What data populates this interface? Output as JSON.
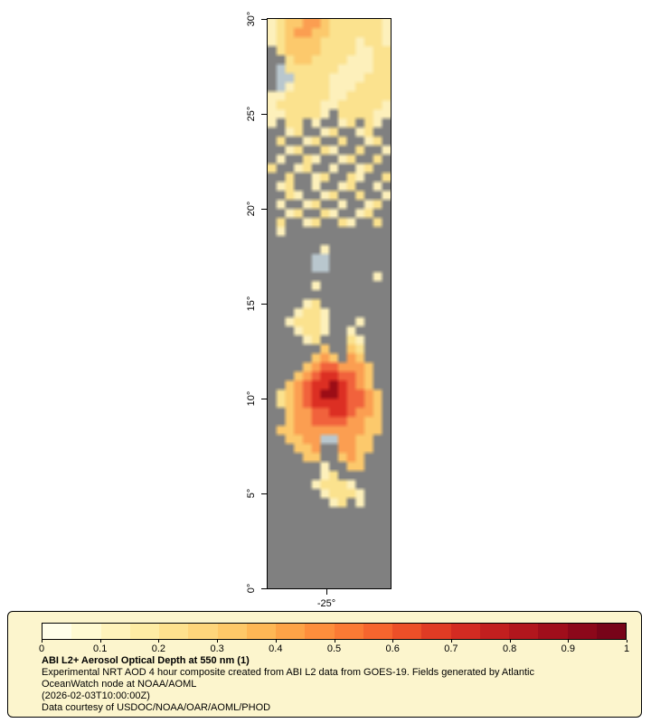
{
  "map": {
    "lat_tick_labels": [
      "30°",
      "25°",
      "20°",
      "15°",
      "10°",
      "5°",
      "0°"
    ],
    "lon_tick_labels": [
      "-25°"
    ],
    "no_data_color": "#808080",
    "palette": {
      ".": "#808080",
      "g": "#b9c7ce",
      "a": "#fdf0bb",
      "b": "#fbe28e",
      "c": "#fcc96c",
      "d": "#fb9e51",
      "e": "#f1623c",
      "f": "#dc2f23",
      "h": "#9c0d16"
    },
    "grid": [
      "abccddcbbbbbba",
      "abcddccbbbbbba",
      "abccccbbbbabba",
      ".bccccbbbbaabb",
      "..bccbbbbaaabb",
      ".gbbbbbbaaaabb",
      ".ggbbbbaaaabbb",
      ".gabbbbaaabbbb",
      "aabbbbbaabbbbb",
      "abbbbbaabbbbba",
      "aabbbba.bbbbaa",
      "a.bb.a..ab.ba.",
      "..ab..ab..ab..",
      ".b..ab..b..ab.",
      "..ab..ba..b..a",
      ".a..ba..ab..b.",
      "b..ab..a..ab..",
      "..b..ab..ba..b",
      ".ab..a..ab..a.",
      "..ba..ab..b..a",
      ".a..ab..a..ab.",
      "..ab..ba..ab..",
      ".b..ab..ba..b.",
      ".a............",
      "..............",
      "......a.......",
      ".....gg.......",
      ".....gg.......",
      "............a.",
      ".....a........",
      "..............",
      "....ab........",
      "...abba.......",
      "..abbba...a...",
      "...abba..a....",
      "....ab...ba...",
      "......c..cb...",
      ".....cdc.dc...",
      "....cdeedddc..",
      "...cdeffeedc..",
      "..cdeffhfedc..",
      ".bcdefhhfeedc.",
      ".bcdeffffeedc.",
      "..cddeeffeddc.",
      "..cddeeeeddcc.",
      ".ccddddddddcc.",
      "..ccddggddcc..",
      "...ccd..ddcc..",
      "....cc..cdc...",
      "......a..cc...",
      "......ab......",
      ".....abbba....",
      "......abbba...",
      ".......ab.a...",
      "..............",
      "..............",
      "..............",
      "..............",
      "..............",
      "..............",
      "..............",
      "..............",
      ".............."
    ]
  },
  "legend": {
    "title": "ABI L2+ Aerosol Optical Depth at 550 nm (1)",
    "description": "Experimental NRT AOD 4 hour composite created from ABI L2 data from GOES-19. Fields generated by Atlantic OceanWatch node at NOAA/AOML",
    "timestamp": "(2026-02-03T10:00:00Z)",
    "credit": "Data courtesy of USDOC/NOAA/OAR/AOML/PHOD",
    "bg_color": "#fcf5cd",
    "colorbar": {
      "min": 0,
      "max": 1,
      "tick_labels": [
        "0",
        "0.1",
        "0.2",
        "0.3",
        "0.4",
        "0.5",
        "0.6",
        "0.7",
        "0.8",
        "0.9",
        "1"
      ],
      "colors": [
        "#fffee9",
        "#fffad2",
        "#fff3bb",
        "#feeca4",
        "#fee18e",
        "#fed57b",
        "#fec868",
        "#feb755",
        "#fda347",
        "#fd8e3c",
        "#fb7a34",
        "#f6652e",
        "#ec4f28",
        "#e03b24",
        "#d32b22",
        "#c21f1f",
        "#b2161d",
        "#a00e1b",
        "#8c081a",
        "#780419"
      ]
    }
  }
}
